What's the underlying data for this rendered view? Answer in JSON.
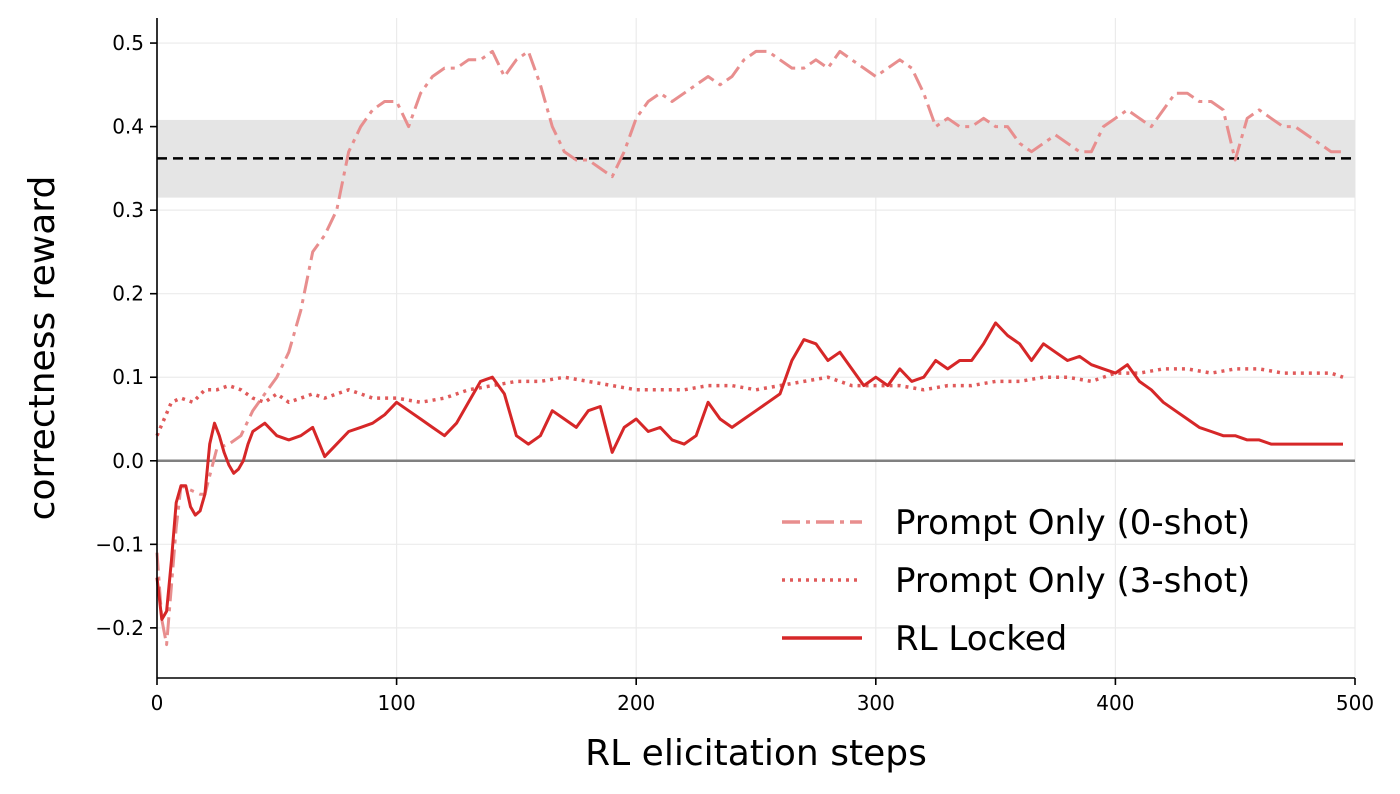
{
  "chart_data": {
    "type": "line",
    "xlabel": "RL elicitation steps",
    "ylabel": "correctness reward",
    "xlim": [
      0,
      500
    ],
    "ylim": [
      -0.26,
      0.53
    ],
    "x_ticks": [
      0,
      100,
      200,
      300,
      400,
      500
    ],
    "x_tick_labels": [
      "0",
      "100",
      "200",
      "300",
      "400",
      "500"
    ],
    "y_ticks": [
      -0.2,
      -0.1,
      0.0,
      0.1,
      0.2,
      0.3,
      0.4,
      0.5
    ],
    "y_tick_labels": [
      "−0.2",
      "−0.1",
      "0.0",
      "0.1",
      "0.2",
      "0.3",
      "0.4",
      "0.5"
    ],
    "grid": true,
    "legend_position": "lower-right",
    "reference_line": {
      "y": 0.362,
      "style": "dashed",
      "color": "#000000"
    },
    "reference_band": {
      "y_low": 0.315,
      "y_high": 0.408,
      "color": "#e5e5e5"
    },
    "zero_line": {
      "y": 0.0,
      "color": "#808080"
    },
    "series": [
      {
        "name": "Prompt Only (0-shot)",
        "style": "dashdot",
        "color": "#e88e8e",
        "x": [
          0,
          2,
          4,
          6,
          8,
          10,
          14,
          18,
          20,
          25,
          30,
          35,
          40,
          45,
          50,
          55,
          60,
          65,
          70,
          75,
          80,
          85,
          90,
          95,
          100,
          105,
          110,
          115,
          120,
          125,
          130,
          135,
          140,
          145,
          150,
          155,
          160,
          165,
          170,
          175,
          180,
          185,
          190,
          195,
          200,
          205,
          210,
          215,
          220,
          225,
          230,
          235,
          240,
          245,
          250,
          255,
          260,
          265,
          270,
          275,
          280,
          285,
          290,
          295,
          300,
          305,
          310,
          315,
          320,
          325,
          330,
          335,
          340,
          345,
          350,
          355,
          360,
          365,
          370,
          375,
          380,
          385,
          390,
          395,
          400,
          405,
          410,
          415,
          420,
          425,
          430,
          435,
          440,
          445,
          450,
          455,
          460,
          465,
          470,
          475,
          480,
          485,
          490,
          495
        ],
        "values": [
          -0.11,
          -0.19,
          -0.22,
          -0.15,
          -0.08,
          -0.03,
          -0.035,
          -0.04,
          -0.04,
          0.015,
          0.02,
          0.03,
          0.06,
          0.08,
          0.1,
          0.13,
          0.18,
          0.25,
          0.27,
          0.3,
          0.37,
          0.4,
          0.42,
          0.43,
          0.43,
          0.4,
          0.44,
          0.46,
          0.47,
          0.47,
          0.48,
          0.48,
          0.49,
          0.46,
          0.48,
          0.49,
          0.45,
          0.4,
          0.37,
          0.36,
          0.36,
          0.35,
          0.34,
          0.37,
          0.41,
          0.43,
          0.44,
          0.43,
          0.44,
          0.45,
          0.46,
          0.45,
          0.46,
          0.48,
          0.49,
          0.49,
          0.48,
          0.47,
          0.47,
          0.48,
          0.47,
          0.49,
          0.48,
          0.47,
          0.46,
          0.47,
          0.48,
          0.47,
          0.44,
          0.4,
          0.41,
          0.4,
          0.4,
          0.41,
          0.4,
          0.4,
          0.38,
          0.37,
          0.38,
          0.39,
          0.38,
          0.37,
          0.37,
          0.4,
          0.41,
          0.42,
          0.41,
          0.4,
          0.42,
          0.44,
          0.44,
          0.43,
          0.43,
          0.42,
          0.36,
          0.41,
          0.42,
          0.41,
          0.4,
          0.4,
          0.39,
          0.38,
          0.37,
          0.37
        ]
      },
      {
        "name": "Prompt Only (3-shot)",
        "style": "dotted",
        "color": "#e05a5a",
        "x": [
          0,
          3,
          6,
          10,
          15,
          20,
          25,
          30,
          35,
          40,
          45,
          50,
          55,
          60,
          65,
          70,
          75,
          80,
          85,
          90,
          100,
          110,
          120,
          130,
          140,
          150,
          160,
          170,
          180,
          190,
          200,
          210,
          220,
          230,
          240,
          250,
          260,
          270,
          280,
          290,
          300,
          310,
          320,
          330,
          340,
          350,
          360,
          370,
          380,
          390,
          400,
          410,
          420,
          430,
          440,
          450,
          460,
          470,
          480,
          490,
          495
        ],
        "values": [
          0.03,
          0.05,
          0.07,
          0.075,
          0.07,
          0.085,
          0.085,
          0.09,
          0.085,
          0.075,
          0.07,
          0.08,
          0.07,
          0.075,
          0.08,
          0.075,
          0.08,
          0.085,
          0.08,
          0.075,
          0.075,
          0.07,
          0.075,
          0.085,
          0.09,
          0.095,
          0.095,
          0.1,
          0.095,
          0.09,
          0.085,
          0.085,
          0.085,
          0.09,
          0.09,
          0.085,
          0.09,
          0.095,
          0.1,
          0.09,
          0.09,
          0.09,
          0.085,
          0.09,
          0.09,
          0.095,
          0.095,
          0.1,
          0.1,
          0.095,
          0.105,
          0.105,
          0.11,
          0.11,
          0.105,
          0.11,
          0.11,
          0.105,
          0.105,
          0.105,
          0.1
        ]
      },
      {
        "name": "RL Locked",
        "style": "solid",
        "color": "#d62728",
        "x": [
          0,
          2,
          4,
          6,
          8,
          10,
          12,
          14,
          16,
          18,
          20,
          22,
          24,
          26,
          28,
          30,
          32,
          34,
          36,
          38,
          40,
          45,
          50,
          55,
          60,
          65,
          70,
          75,
          80,
          85,
          90,
          95,
          100,
          105,
          110,
          115,
          120,
          125,
          130,
          135,
          140,
          145,
          150,
          155,
          160,
          165,
          170,
          175,
          180,
          185,
          190,
          195,
          200,
          205,
          210,
          215,
          220,
          225,
          230,
          235,
          240,
          245,
          250,
          255,
          260,
          265,
          270,
          275,
          280,
          285,
          290,
          295,
          300,
          305,
          310,
          315,
          320,
          325,
          330,
          335,
          340,
          345,
          350,
          355,
          360,
          365,
          370,
          375,
          380,
          385,
          390,
          395,
          400,
          405,
          410,
          415,
          420,
          425,
          430,
          435,
          440,
          445,
          450,
          455,
          460,
          465,
          470,
          475,
          480,
          485,
          490,
          495
        ],
        "values": [
          -0.14,
          -0.19,
          -0.18,
          -0.12,
          -0.05,
          -0.03,
          -0.03,
          -0.055,
          -0.065,
          -0.06,
          -0.04,
          0.02,
          0.045,
          0.03,
          0.01,
          -0.005,
          -0.015,
          -0.01,
          0.0,
          0.02,
          0.035,
          0.045,
          0.03,
          0.025,
          0.03,
          0.04,
          0.005,
          0.02,
          0.035,
          0.04,
          0.045,
          0.055,
          0.07,
          0.06,
          0.05,
          0.04,
          0.03,
          0.045,
          0.07,
          0.095,
          0.1,
          0.08,
          0.03,
          0.02,
          0.03,
          0.06,
          0.05,
          0.04,
          0.06,
          0.065,
          0.01,
          0.04,
          0.05,
          0.035,
          0.04,
          0.025,
          0.02,
          0.03,
          0.07,
          0.05,
          0.04,
          0.05,
          0.06,
          0.07,
          0.08,
          0.12,
          0.145,
          0.14,
          0.12,
          0.13,
          0.11,
          0.09,
          0.1,
          0.09,
          0.11,
          0.095,
          0.1,
          0.12,
          0.11,
          0.12,
          0.12,
          0.14,
          0.165,
          0.15,
          0.14,
          0.12,
          0.14,
          0.13,
          0.12,
          0.125,
          0.115,
          0.11,
          0.105,
          0.115,
          0.095,
          0.085,
          0.07,
          0.06,
          0.05,
          0.04,
          0.035,
          0.03,
          0.03,
          0.025,
          0.025,
          0.02,
          0.02,
          0.02,
          0.02,
          0.02,
          0.02,
          0.02
        ]
      }
    ]
  }
}
